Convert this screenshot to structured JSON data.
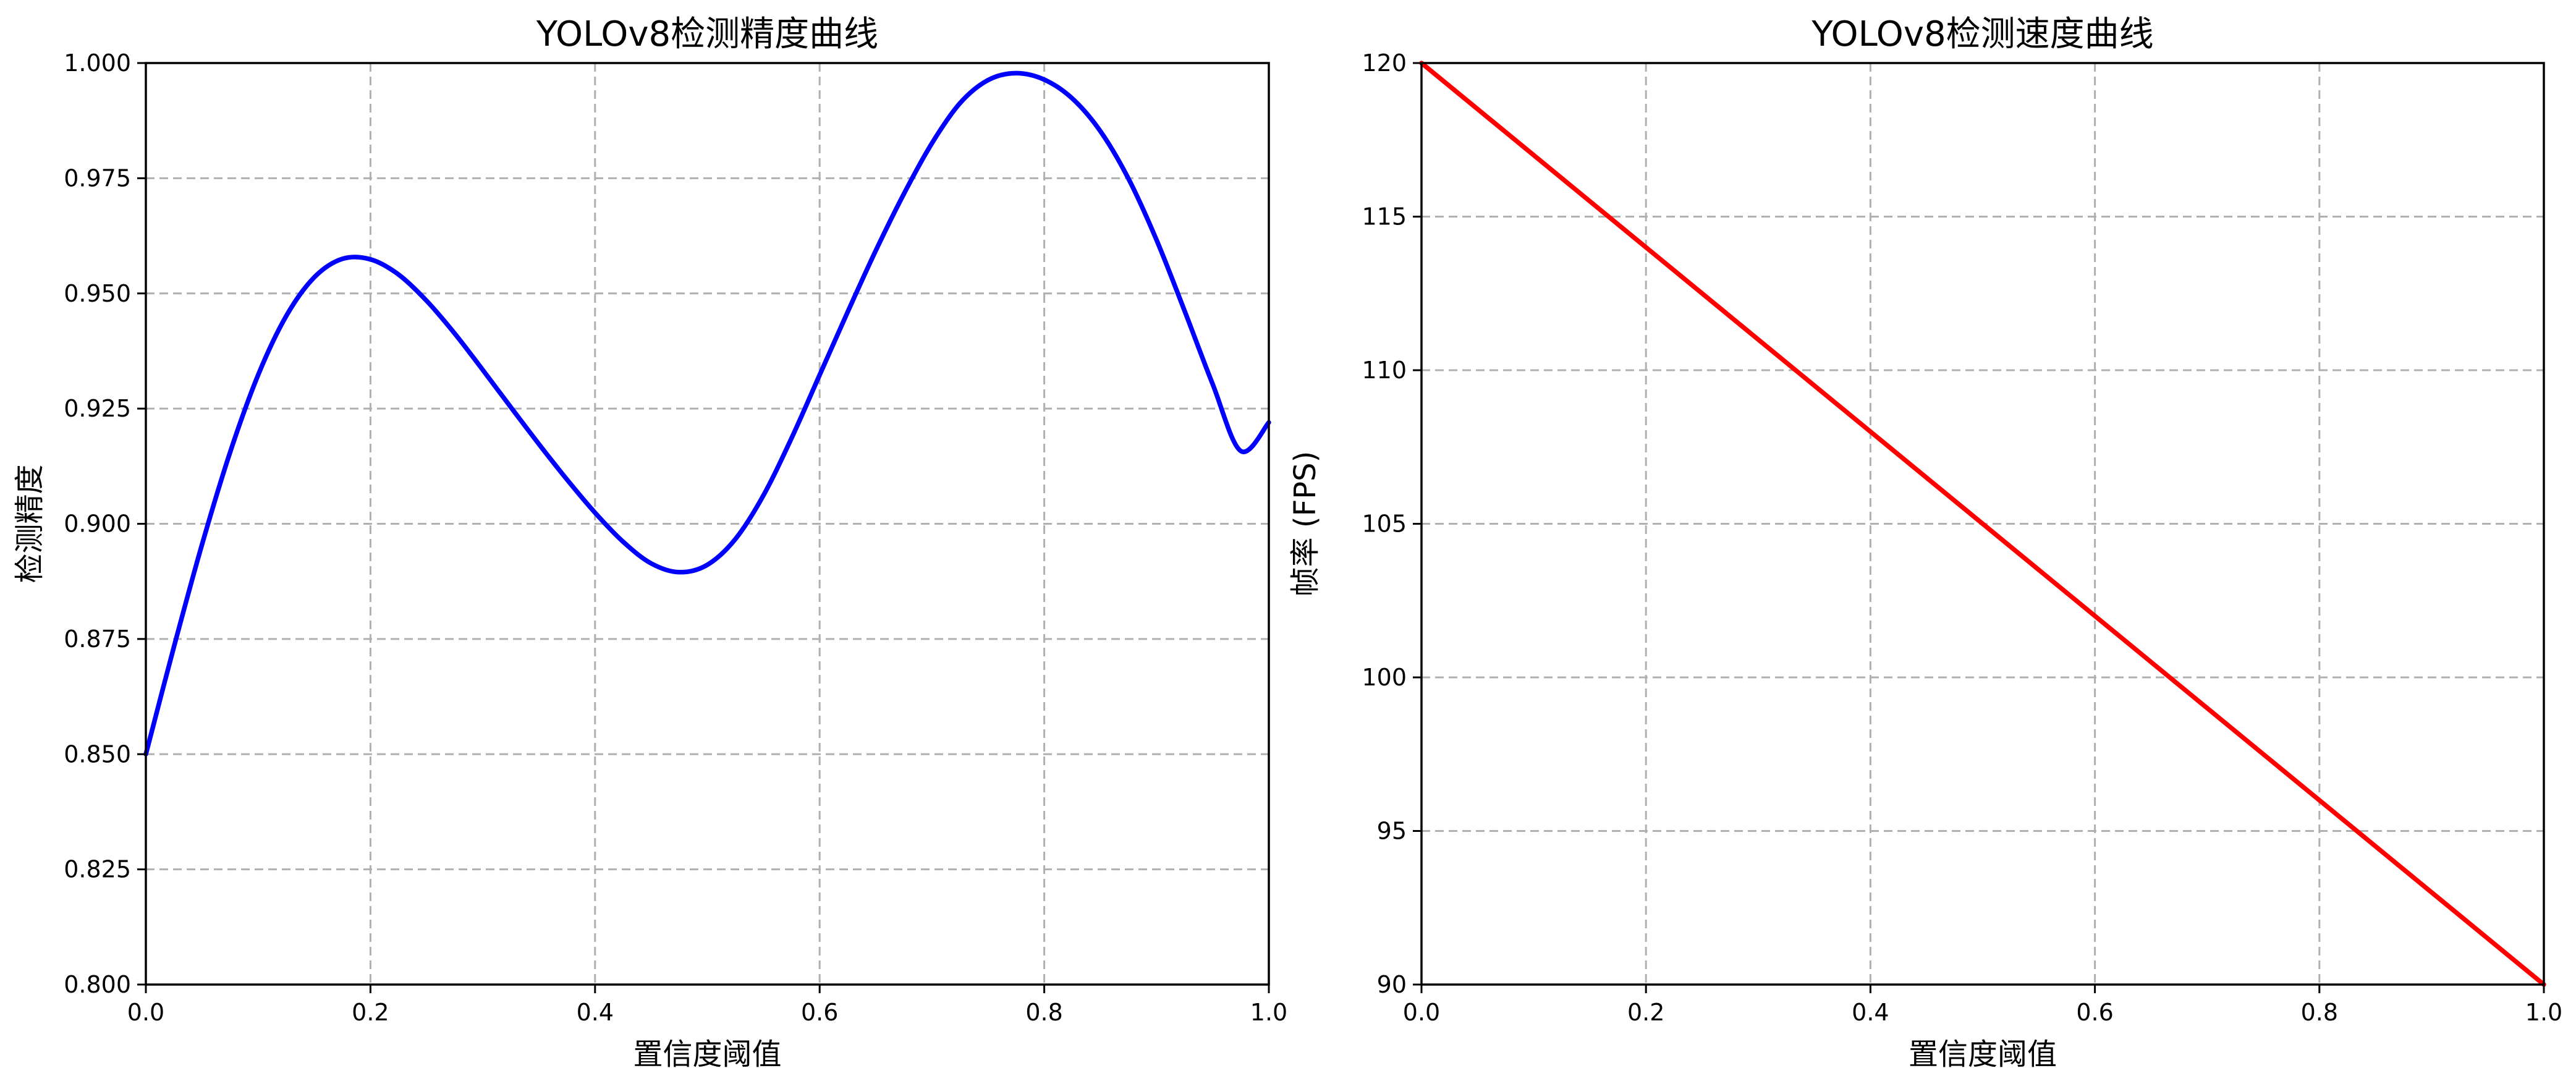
{
  "chart_data": [
    {
      "type": "line",
      "title": "YOLOv8检测精度曲线",
      "xlabel": "置信度阈值",
      "ylabel": "检测精度",
      "xlim": [
        0.0,
        1.0
      ],
      "ylim": [
        0.8,
        1.0
      ],
      "x_ticks": [
        "0.0",
        "0.2",
        "0.4",
        "0.6",
        "0.8",
        "1.0"
      ],
      "y_ticks": [
        "0.800",
        "0.825",
        "0.850",
        "0.875",
        "0.900",
        "0.925",
        "0.950",
        "0.975",
        "1.000"
      ],
      "grid": true,
      "color": "#0000ff",
      "series": [
        {
          "x": [
            0.0,
            0.025,
            0.05,
            0.075,
            0.1,
            0.125,
            0.15,
            0.175,
            0.2,
            0.225,
            0.25,
            0.275,
            0.3,
            0.325,
            0.35,
            0.375,
            0.4,
            0.425,
            0.45,
            0.475,
            0.5,
            0.525,
            0.55,
            0.575,
            0.6,
            0.625,
            0.65,
            0.675,
            0.7,
            0.725,
            0.75,
            0.775,
            0.8,
            0.825,
            0.85,
            0.875,
            0.9,
            0.925,
            0.95,
            0.975,
            1.0
          ],
          "y": [
            0.85,
            0.8733,
            0.8955,
            0.9155,
            0.9323,
            0.9451,
            0.9535,
            0.9575,
            0.9574,
            0.9541,
            0.9484,
            0.9413,
            0.9334,
            0.9253,
            0.9173,
            0.9096,
            0.9024,
            0.8961,
            0.8914,
            0.8895,
            0.8911,
            0.8967,
            0.9062,
            0.9186,
            0.9323,
            0.946,
            0.9593,
            0.9716,
            0.9826,
            0.9913,
            0.9963,
            0.9978,
            0.9964,
            0.9923,
            0.9852,
            0.9749,
            0.9616,
            0.9462,
            0.9303,
            0.9158,
            0.922
          ]
        }
      ]
    },
    {
      "type": "line",
      "title": "YOLOv8检测速度曲线",
      "xlabel": "置信度阈值",
      "ylabel": "帧率 (FPS)",
      "xlim": [
        0.0,
        1.0
      ],
      "ylim": [
        90,
        120
      ],
      "x_ticks": [
        "0.0",
        "0.2",
        "0.4",
        "0.6",
        "0.8",
        "1.0"
      ],
      "y_ticks": [
        "90",
        "95",
        "100",
        "105",
        "110",
        "115",
        "120"
      ],
      "grid": true,
      "color": "#ff0000",
      "series": [
        {
          "x": [
            0.0,
            1.0
          ],
          "y": [
            120,
            90
          ]
        }
      ]
    }
  ]
}
